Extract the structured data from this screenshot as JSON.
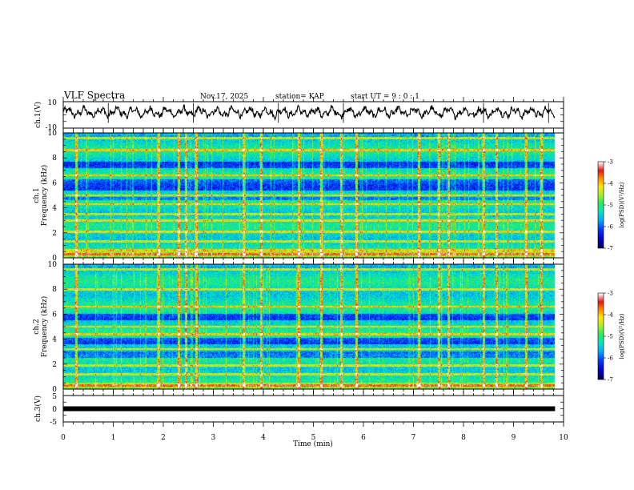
{
  "header": {
    "title": "VLF Spectra",
    "date": "Nov.17, 2025",
    "station": "station= KAP",
    "start_ut": "start  UT  =   9  : 0   : 1"
  },
  "chart_data": [
    {
      "type": "line",
      "name": "ch1-waveform",
      "ylabel": "ch.1(V)",
      "ylim": [
        -10,
        10
      ],
      "ytick_labels": [
        "10",
        "-10"
      ],
      "xlim": [
        0,
        10
      ],
      "duration_min": 9.83,
      "baseline_v": 2,
      "fluctuation_v": 4
    },
    {
      "type": "heatmap",
      "name": "ch1-spectrogram",
      "ylabel": "ch.1\nFrequency  (kHz)",
      "ylim": [
        0,
        10
      ],
      "ytick_labels": [
        "0",
        "2",
        "4",
        "6",
        "8",
        "10"
      ],
      "xlim": [
        0,
        10
      ],
      "duration_min": 9.83,
      "colorbar": {
        "label": "log(PSD)(V²/Hz)",
        "range": [
          -7,
          -3
        ],
        "tick_labels": [
          "-3",
          "-4",
          "-5",
          "-6",
          "-7"
        ]
      },
      "intense_bands_khz": [
        0.3,
        0.6,
        1.3,
        2.1,
        3.0,
        3.5,
        4.3,
        5.0,
        6.6,
        8.6,
        9.6
      ],
      "quiet_bands_khz": [
        [
          5.4,
          6.3
        ],
        [
          7.2,
          7.7
        ],
        [
          4.6,
          4.9
        ]
      ],
      "impulse_times_min": [
        0.25,
        1.9,
        2.3,
        2.45,
        2.65,
        3.6,
        3.95,
        4.7,
        5.15,
        5.55,
        5.85,
        7.1,
        7.5,
        7.7,
        8.4,
        8.65,
        9.25,
        9.55
      ]
    },
    {
      "type": "heatmap",
      "name": "ch2-spectrogram",
      "ylabel": "ch.2\nFrequency  (kHz)",
      "ylim": [
        0,
        10
      ],
      "ytick_labels": [
        "0",
        "2",
        "4",
        "6",
        "8",
        "10"
      ],
      "xlim": [
        0,
        10
      ],
      "duration_min": 9.83,
      "colorbar": {
        "label": "log(PSD)(V²/Hz)",
        "range": [
          -7,
          -3
        ],
        "tick_labels": [
          "-3",
          "-4",
          "-5",
          "-6",
          "-7"
        ]
      },
      "intense_bands_khz": [
        0.3,
        1.2,
        1.9,
        3.2,
        4.4,
        5.0,
        6.6,
        8.0,
        9.6
      ],
      "quiet_bands_khz": [
        [
          2.5,
          3.0
        ],
        [
          3.6,
          4.1
        ],
        [
          5.5,
          6.0
        ]
      ],
      "impulse_times_min": [
        0.25,
        1.9,
        2.3,
        2.45,
        2.65,
        3.6,
        3.95,
        4.7,
        5.15,
        5.55,
        5.85,
        7.1,
        7.5,
        7.7,
        8.4,
        8.65,
        9.25,
        9.55
      ]
    },
    {
      "type": "line",
      "name": "ch3-waveform",
      "ylabel": "ch.3(V)",
      "ylim": [
        -5,
        5
      ],
      "ytick_labels": [
        "5",
        "0",
        "-5"
      ],
      "xlim": [
        0,
        10
      ],
      "duration_min": 9.83,
      "level_v": 0
    }
  ],
  "xaxis": {
    "label": "Time  (min)",
    "tick_labels": [
      "0",
      "1",
      "2",
      "3",
      "4",
      "5",
      "6",
      "7",
      "8",
      "9",
      "10"
    ]
  }
}
